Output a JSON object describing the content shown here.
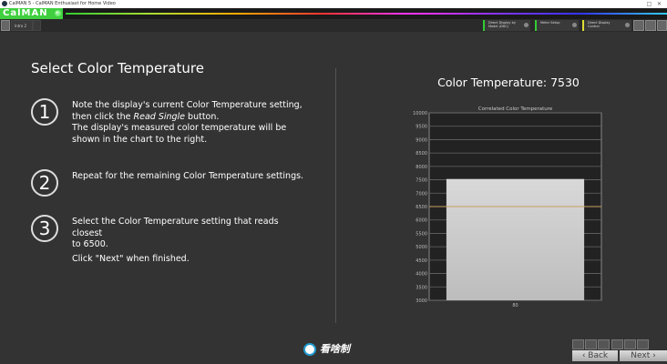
{
  "window": {
    "title": "CalMAN 5 - CalMAN Enthusiast for Home Video"
  },
  "app": {
    "logo": "CalMAN",
    "plus": "+"
  },
  "tabs": [
    {
      "label": "Intro 2"
    }
  ],
  "toolbar": {
    "dropdowns": [
      {
        "label": "Direct Display by Model (DDC)",
        "color": "#3c3"
      },
      {
        "label": "Meter Setup",
        "color": "#3c3"
      },
      {
        "label": "Direct Display Control",
        "color": "#dd3"
      }
    ]
  },
  "page": {
    "title": "Select Color Temperature",
    "steps": [
      {
        "num": "1",
        "lines": [
          "Note the display's current Color Temperature setting,",
          "then click the Read Single button.",
          "The display's measured color temperature will be",
          "shown in the chart to the right."
        ]
      },
      {
        "num": "2",
        "lines": [
          "Repeat for the remaining Color Temperature settings."
        ]
      },
      {
        "num": "3",
        "lines": [
          "Select the Color Temperature setting that reads closest",
          "to 6500.",
          "Click \"Next\" when finished."
        ]
      }
    ]
  },
  "readout": "Color Temperature: 7530",
  "chart_data": {
    "type": "bar",
    "title": "Correlated Color Temperature",
    "categories": [
      "80"
    ],
    "values": [
      7530
    ],
    "ylim": [
      3000,
      10000
    ],
    "yticks": [
      3000,
      3500,
      4000,
      4500,
      5000,
      5500,
      6000,
      6500,
      7000,
      7500,
      8000,
      8500,
      9000,
      9500,
      10000
    ],
    "reference_line": 6500,
    "reference_color": "#c8a060",
    "grid": true
  },
  "nav": {
    "back": "Back",
    "next": "Next"
  },
  "brand": "看啥制"
}
